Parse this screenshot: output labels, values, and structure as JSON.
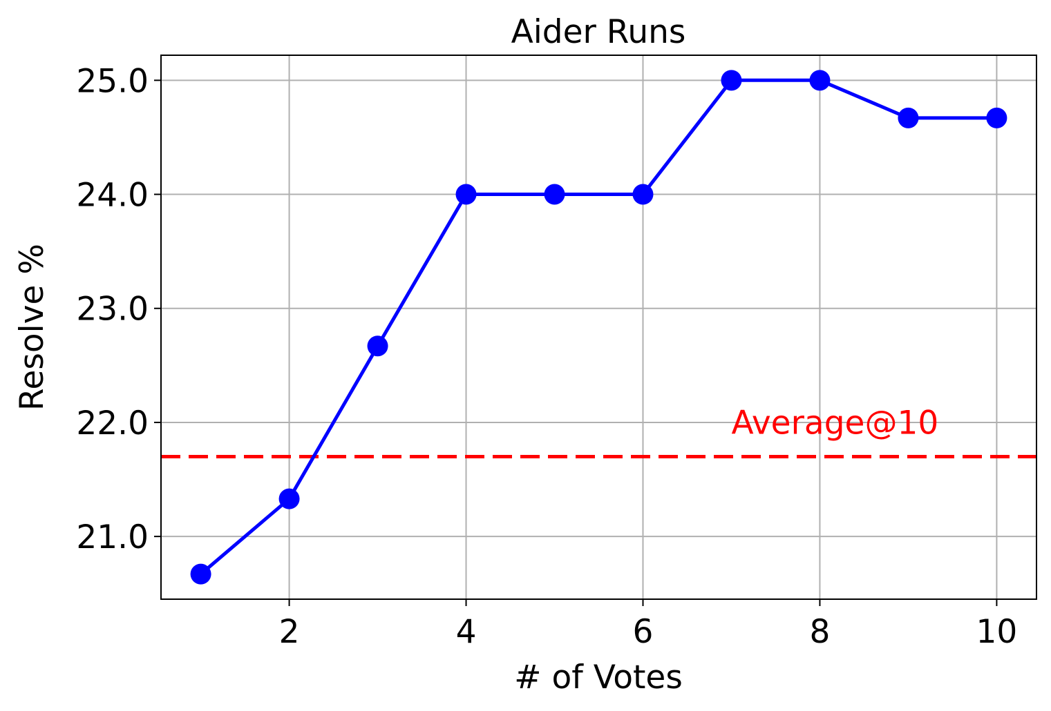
{
  "chart_data": {
    "type": "line",
    "title": "Aider Runs",
    "xlabel": "# of Votes",
    "ylabel": "Resolve %",
    "x": [
      1,
      2,
      3,
      4,
      5,
      6,
      7,
      8,
      9,
      10
    ],
    "series": [
      {
        "values": [
          20.67,
          21.33,
          22.67,
          24.0,
          24.0,
          24.0,
          25.0,
          25.0,
          24.67,
          24.67
        ],
        "color": "#0000ff",
        "marker": "circle"
      }
    ],
    "reference_line": {
      "label": "Average@10",
      "y": 21.7,
      "color": "#ff0000",
      "style": "dashed"
    },
    "xticks": [
      2,
      4,
      6,
      8,
      10
    ],
    "xtick_labels": [
      "2",
      "4",
      "6",
      "8",
      "10"
    ],
    "yticks": [
      21.0,
      22.0,
      23.0,
      24.0,
      25.0
    ],
    "ytick_labels": [
      "21.0",
      "22.0",
      "23.0",
      "24.0",
      "25.0"
    ],
    "xlim": [
      0.55,
      10.45
    ],
    "ylim": [
      20.45,
      25.22
    ],
    "grid": true
  }
}
